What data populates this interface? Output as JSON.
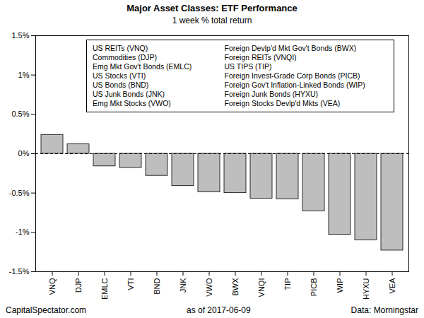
{
  "chart_data": {
    "type": "bar",
    "title": "Major Asset Classes: ETF Performance",
    "subtitle": "1 week % total return",
    "categories": [
      "VNQ",
      "DJP",
      "EMLC",
      "VTI",
      "BND",
      "JNK",
      "VWO",
      "BWX",
      "VNQI",
      "TIP",
      "PICB",
      "WIP",
      "HYXU",
      "VEA"
    ],
    "values": [
      0.24,
      0.12,
      -0.16,
      -0.18,
      -0.28,
      -0.41,
      -0.49,
      -0.5,
      -0.57,
      -0.58,
      -0.73,
      -1.03,
      -1.1,
      -1.23
    ],
    "color": "#bebebe",
    "ylim": [
      -1.5,
      1.5
    ],
    "yticks": [
      {
        "value": -1.5,
        "label": "-1.5%"
      },
      {
        "value": -1,
        "label": "-1%"
      },
      {
        "value": -0.5,
        "label": "-0.5%"
      },
      {
        "value": 0,
        "label": "0%"
      },
      {
        "value": 0.5,
        "label": "0.5%"
      },
      {
        "value": 1,
        "label": "1%"
      },
      {
        "value": 1.5,
        "label": "1.5%"
      }
    ],
    "grid": false,
    "annotations": [
      "US REITs (VNQ)",
      "Commodities (DJP)",
      "Emg Mkt Gov't Bonds (EMLC)",
      "US Stocks (VTI)",
      "US Bonds (BND)",
      "US Junk Bonds (JNK)",
      "Emg Mkt Stocks (VWO)",
      "Foreign Devlp'd Mkt Gov't Bonds (BWX)",
      "Foreign REITs (VNQI)",
      "US TIPS (TIP)",
      "Foreign Invest-Grade Corp Bonds (PICB)",
      "Foreign Gov't Inflation-Linked Bonds (WIP)",
      "Foreign Junk Bonds (HYXU)",
      "Foreign Stocks Devlp'd Mkts (VEA)"
    ],
    "notes": [
      "CapitalSpectator.com",
      "as of 2017-06-09",
      "Data: Morningstar"
    ]
  }
}
